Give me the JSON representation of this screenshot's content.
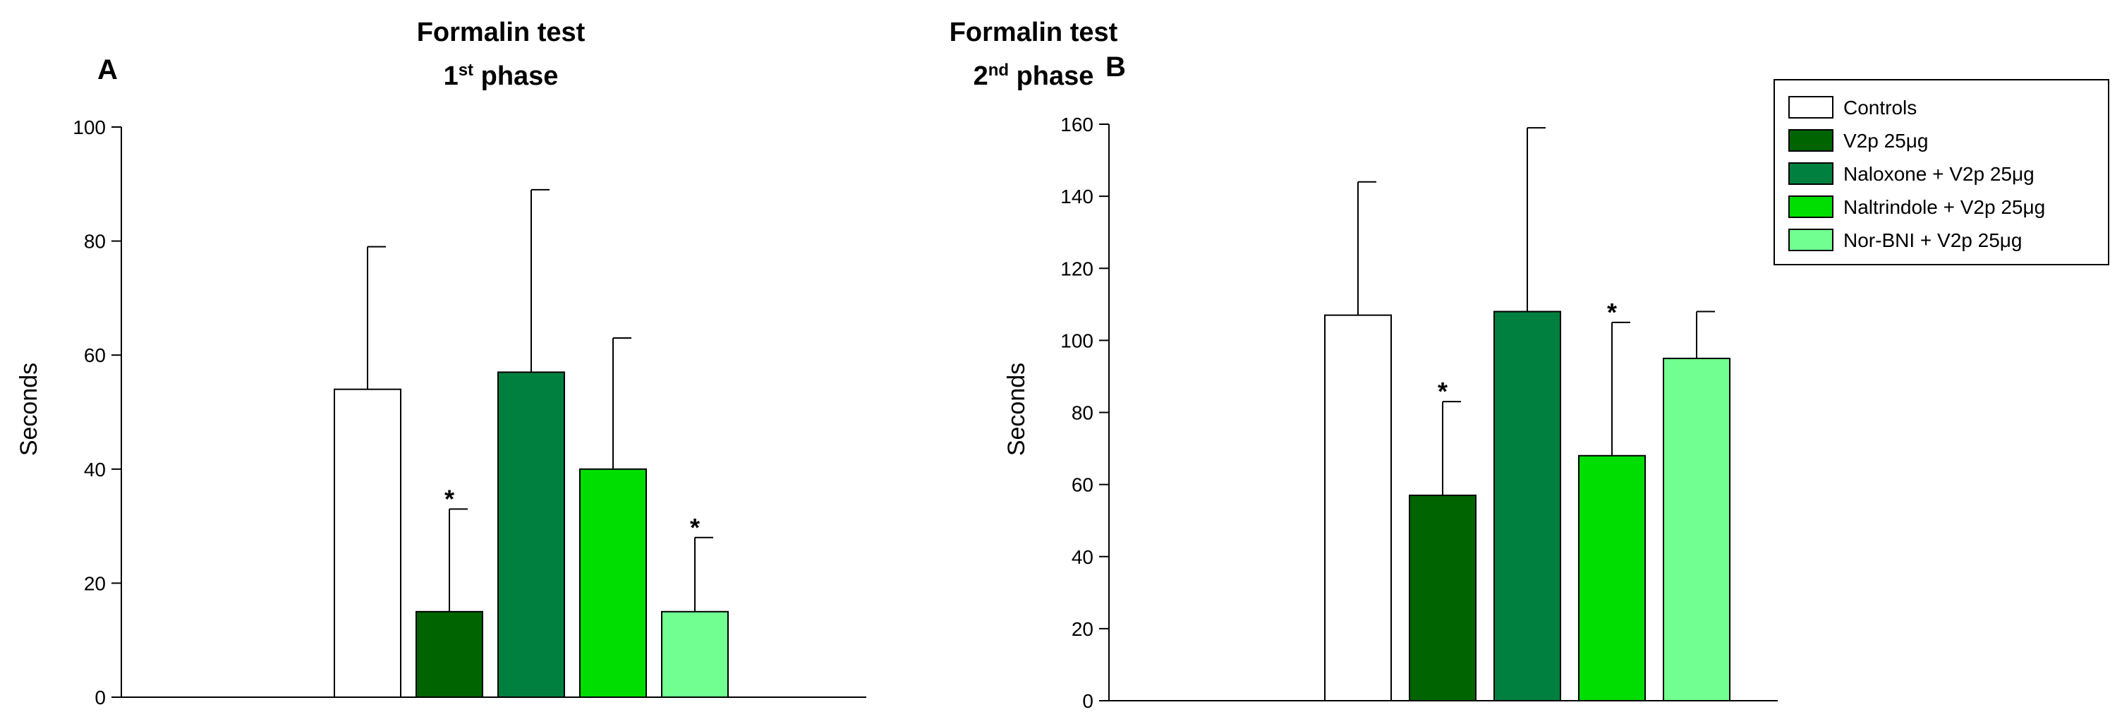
{
  "chart_data": [
    {
      "type": "bar",
      "panel_letter": "A",
      "title": "Formalin test",
      "subtitle": {
        "prefix": "1",
        "sup": "st",
        "suffix": " phase"
      },
      "ylabel": "Seconds",
      "xlabel": "",
      "ylim": [
        0,
        100
      ],
      "yticks": [
        0,
        20,
        40,
        60,
        80,
        100
      ],
      "grid": false,
      "categories": [
        "Controls",
        "V2p 25μg",
        "Naloxone + V2p 25μg",
        "Naltrindole + V2p 25μg",
        "Nor-BNI + V2p 25μg"
      ],
      "values": [
        54,
        15,
        57,
        40,
        15
      ],
      "error_upper": [
        79,
        33,
        89,
        63,
        28
      ],
      "significant": [
        false,
        true,
        false,
        false,
        true
      ],
      "significance_marker": "*"
    },
    {
      "type": "bar",
      "panel_letter": "B",
      "title": "Formalin test",
      "subtitle": {
        "prefix": "2",
        "sup": "nd",
        "suffix": " phase"
      },
      "ylabel": "Seconds",
      "xlabel": "",
      "ylim": [
        0,
        160
      ],
      "yticks": [
        0,
        20,
        40,
        60,
        80,
        100,
        120,
        140,
        160
      ],
      "grid": false,
      "categories": [
        "Controls",
        "V2p 25μg",
        "Naloxone + V2p 25μg",
        "Naltrindole + V2p 25μg",
        "Nor-BNI + V2p 25μg"
      ],
      "values": [
        107,
        57,
        108,
        68,
        95
      ],
      "error_upper": [
        144,
        83,
        159,
        105,
        108
      ],
      "significant": [
        false,
        true,
        false,
        true,
        false
      ],
      "significance_marker": "*"
    }
  ],
  "legend": {
    "placement": "top-right",
    "entries": [
      {
        "label": "Controls",
        "color": "#ffffff"
      },
      {
        "label": "V2p 25μg",
        "color": "#006400"
      },
      {
        "label": "Naloxone + V2p 25μg",
        "color": "#00803f"
      },
      {
        "label": "Naltrindole + V2p 25μg",
        "color": "#00dd00"
      },
      {
        "label": "Nor-BNI + V2p 25μg",
        "color": "#70ff90"
      }
    ]
  }
}
